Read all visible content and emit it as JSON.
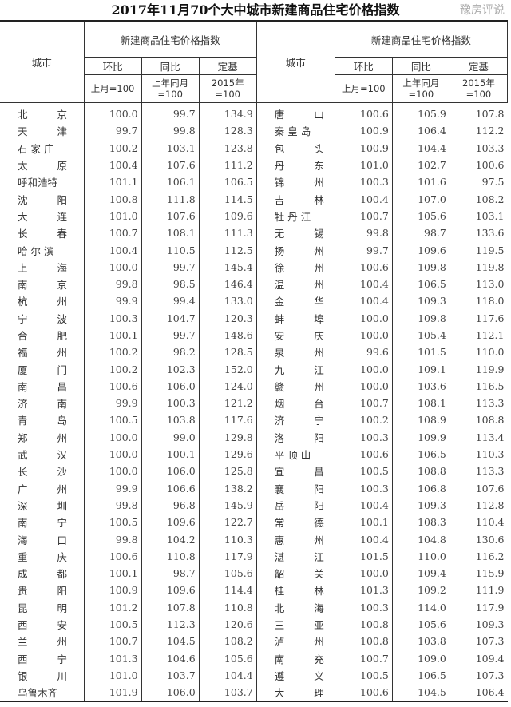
{
  "title": "2017年11月70个大中城市新建商品住宅价格指数",
  "header": {
    "city": "城市",
    "group": "新建商品住宅价格指数",
    "mom": "环比",
    "yoy": "同比",
    "base": "定基",
    "mom_base": "上月=100",
    "yoy_base": "上年同月=100",
    "base_base": "2015年=100"
  },
  "left_rows": [
    [
      "北京",
      "100.0",
      "99.7",
      "134.9"
    ],
    [
      "天津",
      "99.7",
      "99.8",
      "128.3"
    ],
    [
      "石家庄",
      "100.2",
      "103.1",
      "123.8"
    ],
    [
      "太原",
      "100.4",
      "107.6",
      "111.2"
    ],
    [
      "呼和浩特",
      "101.1",
      "106.1",
      "106.5"
    ],
    [
      "沈阳",
      "100.8",
      "111.8",
      "114.5"
    ],
    [
      "大连",
      "101.0",
      "107.6",
      "109.6"
    ],
    [
      "长春",
      "100.7",
      "108.1",
      "111.3"
    ],
    [
      "哈尔滨",
      "100.4",
      "110.5",
      "112.5"
    ],
    [
      "上海",
      "100.0",
      "99.7",
      "145.4"
    ],
    [
      "南京",
      "99.8",
      "98.5",
      "146.4"
    ],
    [
      "杭州",
      "99.9",
      "99.4",
      "133.0"
    ],
    [
      "宁波",
      "100.3",
      "104.7",
      "120.3"
    ],
    [
      "合肥",
      "100.1",
      "99.7",
      "148.6"
    ],
    [
      "福州",
      "100.2",
      "98.2",
      "128.5"
    ],
    [
      "厦门",
      "100.2",
      "102.3",
      "152.0"
    ],
    [
      "南昌",
      "100.6",
      "106.0",
      "124.0"
    ],
    [
      "济南",
      "99.9",
      "100.3",
      "121.2"
    ],
    [
      "青岛",
      "100.5",
      "103.8",
      "117.6"
    ],
    [
      "郑州",
      "100.0",
      "99.0",
      "129.8"
    ],
    [
      "武汉",
      "100.0",
      "100.1",
      "129.6"
    ],
    [
      "长沙",
      "100.0",
      "106.0",
      "125.8"
    ],
    [
      "广州",
      "99.9",
      "106.6",
      "138.2"
    ],
    [
      "深圳",
      "99.8",
      "96.8",
      "145.9"
    ],
    [
      "南宁",
      "100.5",
      "109.6",
      "122.7"
    ],
    [
      "海口",
      "99.8",
      "104.2",
      "110.3"
    ],
    [
      "重庆",
      "100.6",
      "110.8",
      "117.9"
    ],
    [
      "成都",
      "100.1",
      "98.7",
      "105.6"
    ],
    [
      "贵阳",
      "100.9",
      "109.6",
      "114.4"
    ],
    [
      "昆明",
      "101.2",
      "107.8",
      "110.8"
    ],
    [
      "西安",
      "100.5",
      "112.3",
      "120.6"
    ],
    [
      "兰州",
      "100.7",
      "104.5",
      "108.2"
    ],
    [
      "西宁",
      "101.3",
      "104.6",
      "105.6"
    ],
    [
      "银川",
      "101.0",
      "103.7",
      "104.4"
    ],
    [
      "乌鲁木齐",
      "101.9",
      "106.0",
      "103.7"
    ]
  ],
  "right_rows": [
    [
      "唐山",
      "100.6",
      "105.9",
      "107.8"
    ],
    [
      "秦皇岛",
      "100.9",
      "106.4",
      "112.2"
    ],
    [
      "包头",
      "100.9",
      "104.4",
      "103.3"
    ],
    [
      "丹东",
      "101.0",
      "102.7",
      "100.6"
    ],
    [
      "锦州",
      "100.3",
      "101.6",
      "97.5"
    ],
    [
      "吉林",
      "100.4",
      "107.0",
      "108.2"
    ],
    [
      "牡丹江",
      "100.7",
      "105.6",
      "103.1"
    ],
    [
      "无锡",
      "99.8",
      "98.7",
      "133.6"
    ],
    [
      "扬州",
      "99.7",
      "109.6",
      "119.5"
    ],
    [
      "徐州",
      "100.6",
      "109.8",
      "119.8"
    ],
    [
      "温州",
      "100.4",
      "106.5",
      "113.0"
    ],
    [
      "金华",
      "100.4",
      "109.3",
      "118.0"
    ],
    [
      "蚌埠",
      "100.0",
      "109.8",
      "117.6"
    ],
    [
      "安庆",
      "100.0",
      "105.4",
      "112.1"
    ],
    [
      "泉州",
      "99.6",
      "101.5",
      "110.0"
    ],
    [
      "九江",
      "100.0",
      "109.1",
      "119.9"
    ],
    [
      "赣州",
      "100.0",
      "103.6",
      "116.5"
    ],
    [
      "烟台",
      "100.7",
      "108.1",
      "113.3"
    ],
    [
      "济宁",
      "100.2",
      "108.9",
      "108.8"
    ],
    [
      "洛阳",
      "100.3",
      "109.9",
      "113.4"
    ],
    [
      "平顶山",
      "100.6",
      "106.5",
      "110.3"
    ],
    [
      "宜昌",
      "100.5",
      "108.8",
      "113.3"
    ],
    [
      "襄阳",
      "100.3",
      "106.8",
      "107.6"
    ],
    [
      "岳阳",
      "100.4",
      "109.3",
      "112.8"
    ],
    [
      "常德",
      "100.1",
      "108.3",
      "110.4"
    ],
    [
      "惠州",
      "100.4",
      "104.8",
      "130.6"
    ],
    [
      "湛江",
      "101.5",
      "110.0",
      "116.2"
    ],
    [
      "韶关",
      "100.0",
      "109.4",
      "115.9"
    ],
    [
      "桂林",
      "101.3",
      "109.2",
      "111.9"
    ],
    [
      "北海",
      "100.3",
      "114.0",
      "117.9"
    ],
    [
      "三亚",
      "100.8",
      "105.6",
      "109.3"
    ],
    [
      "泸州",
      "100.8",
      "103.8",
      "107.3"
    ],
    [
      "南充",
      "100.7",
      "109.0",
      "109.4"
    ],
    [
      "遵义",
      "100.5",
      "106.5",
      "107.3"
    ],
    [
      "大理",
      "100.6",
      "104.5",
      "106.4"
    ]
  ],
  "watermark": "豫房评说"
}
